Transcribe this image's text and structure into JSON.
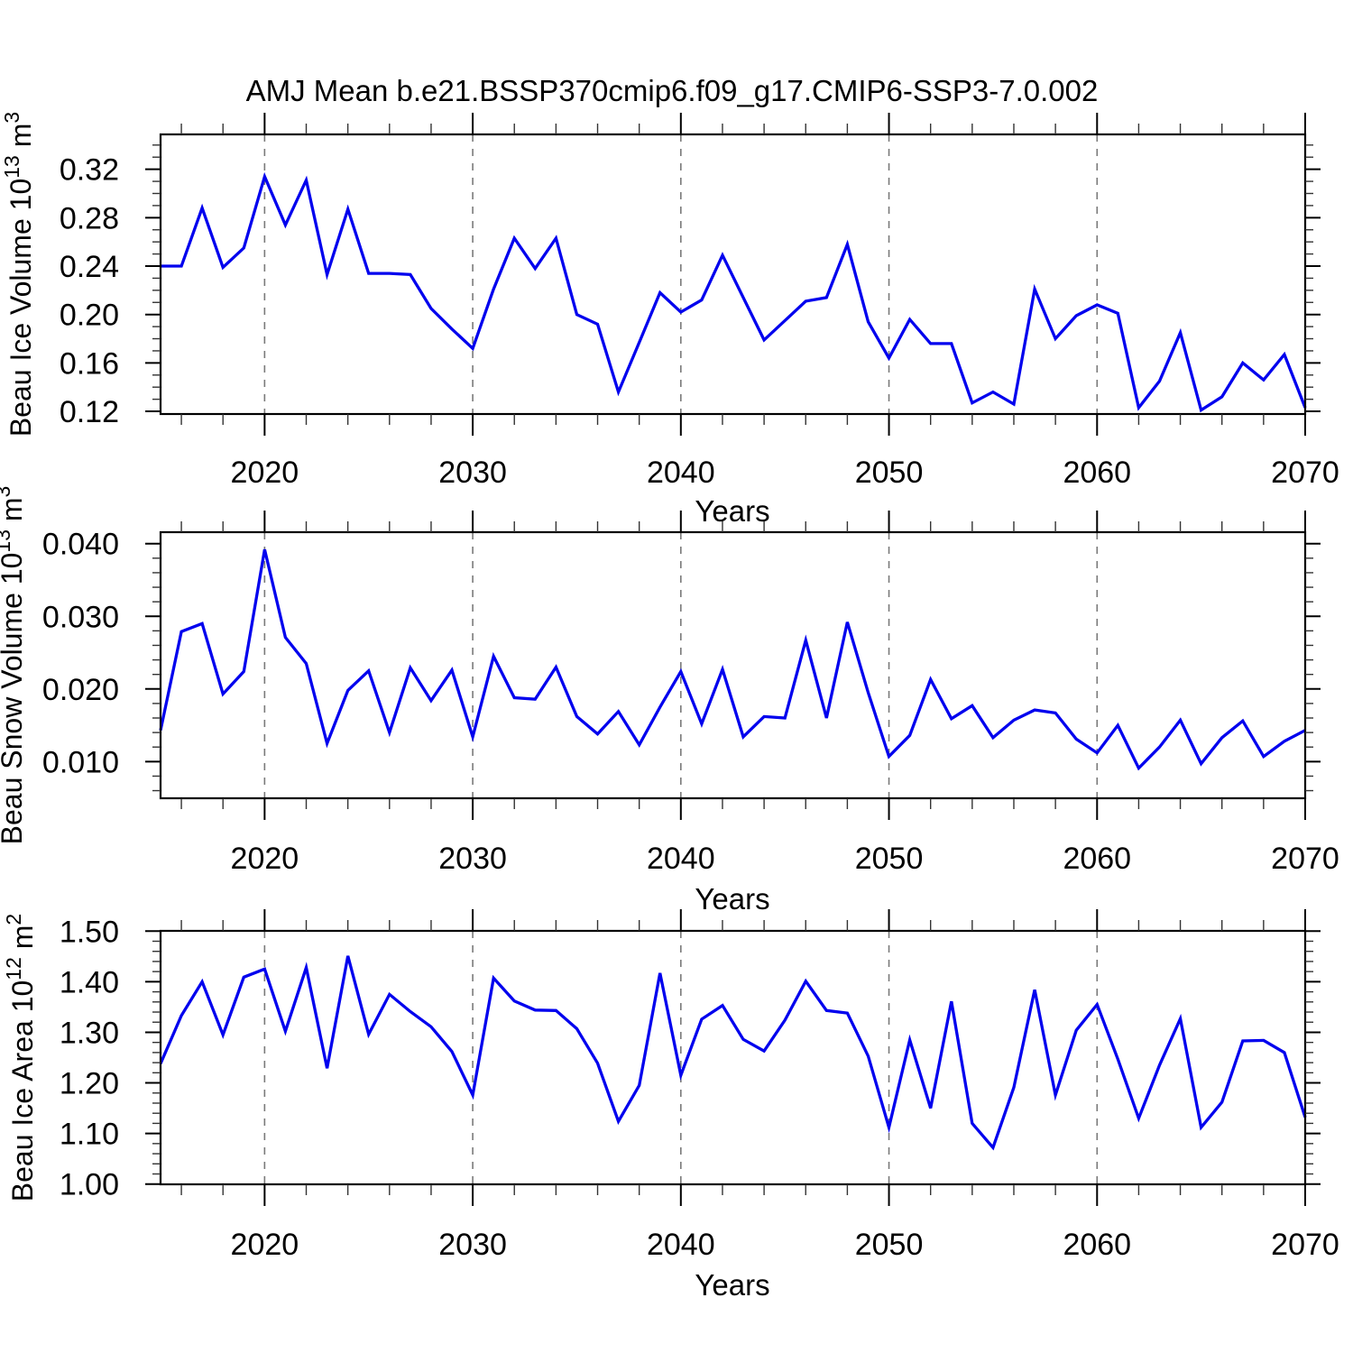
{
  "figure": {
    "title": "AMJ Mean b.e21.BSSP370cmip6.f09_g17.CMIP6-SSP3-7.0.002",
    "x_axis_label": "Years",
    "colors": {
      "line": "#0000ee",
      "grid": "#7a7a7a",
      "axis": "#000000",
      "background": "#ffffff",
      "text": "#000000"
    }
  },
  "chart_data": [
    {
      "type": "line",
      "name": "beau-ice-volume",
      "ylabel_plain": "Beau Ice Volume 10^13 m^3",
      "ylabel_rich": [
        {
          "t": "Beau Ice Volume 10"
        },
        {
          "t": "13",
          "sup": true
        },
        {
          "t": " m"
        },
        {
          "t": "3",
          "sup": true
        }
      ],
      "xlabel": "Years",
      "legend_position": "none",
      "grid": "dashed-vertical",
      "xlim": [
        2015,
        2070
      ],
      "ylim": [
        0.1178,
        0.3488
      ],
      "xticks": [
        2020,
        2030,
        2040,
        2050,
        2060,
        2070
      ],
      "xtick_labels": [
        "2020",
        "2030",
        "2040",
        "2050",
        "2060",
        "2070"
      ],
      "x_minor_step": 2,
      "grid_x": [
        2020,
        2030,
        2040,
        2050,
        2060
      ],
      "yticks": [
        0.12,
        0.16,
        0.2,
        0.24,
        0.28,
        0.32
      ],
      "ytick_labels": [
        "0.12",
        "0.16",
        "0.20",
        "0.24",
        "0.28",
        "0.32"
      ],
      "y_minor_step": 0.01,
      "x": [
        2015,
        2016,
        2017,
        2018,
        2019,
        2020,
        2021,
        2022,
        2023,
        2024,
        2025,
        2026,
        2027,
        2028,
        2029,
        2030,
        2031,
        2032,
        2033,
        2034,
        2035,
        2036,
        2037,
        2038,
        2039,
        2040,
        2041,
        2042,
        2043,
        2044,
        2045,
        2046,
        2047,
        2048,
        2049,
        2050,
        2051,
        2052,
        2053,
        2054,
        2055,
        2056,
        2057,
        2058,
        2059,
        2060,
        2061,
        2062,
        2063,
        2064,
        2065,
        2066,
        2067,
        2068,
        2069,
        2070
      ],
      "values": [
        0.24,
        0.24,
        0.288,
        0.239,
        0.255,
        0.314,
        0.274,
        0.311,
        0.233,
        0.287,
        0.234,
        0.234,
        0.233,
        0.205,
        0.188,
        0.172,
        0.221,
        0.263,
        0.238,
        0.263,
        0.2,
        0.192,
        0.136,
        0.177,
        0.218,
        0.202,
        0.212,
        0.249,
        0.214,
        0.179,
        0.195,
        0.211,
        0.214,
        0.258,
        0.194,
        0.164,
        0.196,
        0.176,
        0.176,
        0.127,
        0.136,
        0.126,
        0.221,
        0.18,
        0.199,
        0.208,
        0.201,
        0.123,
        0.145,
        0.185,
        0.121,
        0.132,
        0.16,
        0.146,
        0.167,
        0.123
      ]
    },
    {
      "type": "line",
      "name": "beau-snow-volume",
      "ylabel_plain": "Beau Snow Volume 10^13 m^3",
      "ylabel_rich": [
        {
          "t": "Beau Snow Volume 10"
        },
        {
          "t": "13",
          "sup": true
        },
        {
          "t": " m"
        },
        {
          "t": "3",
          "sup": true
        }
      ],
      "xlabel": "Years",
      "legend_position": "none",
      "grid": "dashed-vertical",
      "xlim": [
        2015,
        2070
      ],
      "ylim": [
        0.00495,
        0.04158
      ],
      "xticks": [
        2020,
        2030,
        2040,
        2050,
        2060,
        2070
      ],
      "xtick_labels": [
        "2020",
        "2030",
        "2040",
        "2050",
        "2060",
        "2070"
      ],
      "x_minor_step": 2,
      "grid_x": [
        2020,
        2030,
        2040,
        2050,
        2060
      ],
      "yticks": [
        0.01,
        0.02,
        0.03,
        0.04
      ],
      "ytick_labels": [
        "0.010",
        "0.020",
        "0.030",
        "0.040"
      ],
      "y_minor_step": 0.002,
      "x": [
        2015,
        2016,
        2017,
        2018,
        2019,
        2020,
        2021,
        2022,
        2023,
        2024,
        2025,
        2026,
        2027,
        2028,
        2029,
        2030,
        2031,
        2032,
        2033,
        2034,
        2035,
        2036,
        2037,
        2038,
        2039,
        2040,
        2041,
        2042,
        2043,
        2044,
        2045,
        2046,
        2047,
        2048,
        2049,
        2050,
        2051,
        2052,
        2053,
        2054,
        2055,
        2056,
        2057,
        2058,
        2059,
        2060,
        2061,
        2062,
        2063,
        2064,
        2065,
        2066,
        2067,
        2068,
        2069,
        2070
      ],
      "values": [
        0.0143,
        0.0279,
        0.029,
        0.0193,
        0.0224,
        0.0392,
        0.0271,
        0.0235,
        0.0125,
        0.0198,
        0.0225,
        0.014,
        0.0229,
        0.0184,
        0.0226,
        0.0134,
        0.0245,
        0.0188,
        0.0186,
        0.023,
        0.0162,
        0.0138,
        0.0169,
        0.0123,
        0.0175,
        0.0224,
        0.0152,
        0.0227,
        0.0134,
        0.0162,
        0.016,
        0.0267,
        0.016,
        0.0292,
        0.0195,
        0.0107,
        0.0136,
        0.0213,
        0.0159,
        0.0177,
        0.0133,
        0.0157,
        0.0171,
        0.0167,
        0.0131,
        0.0112,
        0.015,
        0.0091,
        0.012,
        0.0157,
        0.0097,
        0.0133,
        0.0156,
        0.0107,
        0.0128,
        0.0143
      ]
    },
    {
      "type": "line",
      "name": "beau-ice-area",
      "ylabel_plain": "Beau Ice Area 10^12 m^2",
      "ylabel_rich": [
        {
          "t": "Beau Ice Area 10"
        },
        {
          "t": "12",
          "sup": true
        },
        {
          "t": " m"
        },
        {
          "t": "2",
          "sup": true
        }
      ],
      "xlabel": "Years",
      "legend_position": "none",
      "grid": "dashed-vertical",
      "xlim": [
        2015,
        2070
      ],
      "ylim": [
        0.9995,
        1.5005
      ],
      "xticks": [
        2020,
        2030,
        2040,
        2050,
        2060,
        2070
      ],
      "xtick_labels": [
        "2020",
        "2030",
        "2040",
        "2050",
        "2060",
        "2070"
      ],
      "x_minor_step": 2,
      "grid_x": [
        2020,
        2030,
        2040,
        2050,
        2060
      ],
      "yticks": [
        1.0,
        1.1,
        1.2,
        1.3,
        1.4,
        1.5
      ],
      "ytick_labels": [
        "1.00",
        "1.10",
        "1.20",
        "1.30",
        "1.40",
        "1.50"
      ],
      "y_minor_step": 0.02,
      "x": [
        2015,
        2016,
        2017,
        2018,
        2019,
        2020,
        2021,
        2022,
        2023,
        2024,
        2025,
        2026,
        2027,
        2028,
        2029,
        2030,
        2031,
        2032,
        2033,
        2034,
        2035,
        2036,
        2037,
        2038,
        2039,
        2040,
        2041,
        2042,
        2043,
        2044,
        2045,
        2046,
        2047,
        2048,
        2049,
        2050,
        2051,
        2052,
        2053,
        2054,
        2055,
        2056,
        2057,
        2058,
        2059,
        2060,
        2061,
        2062,
        2063,
        2064,
        2065,
        2066,
        2067,
        2068,
        2069,
        2070
      ],
      "values": [
        1.238,
        1.333,
        1.4,
        1.295,
        1.409,
        1.425,
        1.302,
        1.428,
        1.229,
        1.451,
        1.296,
        1.375,
        1.341,
        1.311,
        1.262,
        1.176,
        1.407,
        1.362,
        1.344,
        1.343,
        1.307,
        1.239,
        1.124,
        1.195,
        1.417,
        1.215,
        1.326,
        1.353,
        1.286,
        1.263,
        1.324,
        1.401,
        1.343,
        1.338,
        1.253,
        1.112,
        1.285,
        1.15,
        1.361,
        1.12,
        1.072,
        1.191,
        1.384,
        1.176,
        1.304,
        1.355,
        1.247,
        1.13,
        1.235,
        1.327,
        1.112,
        1.162,
        1.283,
        1.284,
        1.26,
        1.132
      ]
    }
  ]
}
